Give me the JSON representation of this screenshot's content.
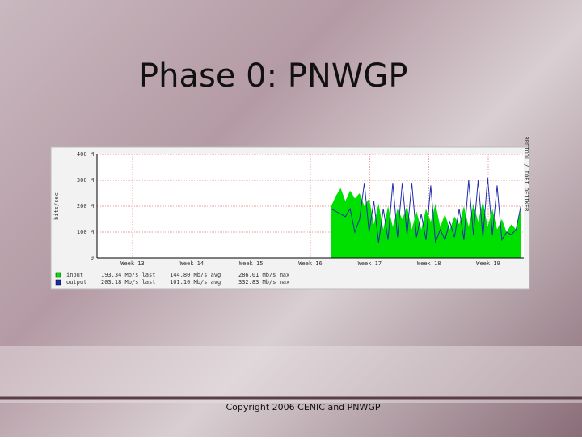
{
  "slide_title": "Phase 0: PNWGP",
  "footer": "Copyright 2006 CENIC and PNWGP",
  "chart_data": {
    "type": "area-line",
    "ylabel": "bits/sec",
    "watermark": "RRDTOOL / TOBI OETIKER",
    "xlim": [
      12.4,
      19.6
    ],
    "xticks": [
      {
        "value": 13,
        "label": "Week 13"
      },
      {
        "value": 14,
        "label": "Week 14"
      },
      {
        "value": 15,
        "label": "Week 15"
      },
      {
        "value": 16,
        "label": "Week 16"
      },
      {
        "value": 17,
        "label": "Week 17"
      },
      {
        "value": 18,
        "label": "Week 18"
      },
      {
        "value": 19,
        "label": "Week 19"
      }
    ],
    "ylim": [
      0,
      400000000
    ],
    "yticks": [
      {
        "value": 0,
        "label": "0"
      },
      {
        "value": 100000000,
        "label": "100 M"
      },
      {
        "value": 200000000,
        "label": "200 M"
      },
      {
        "value": 300000000,
        "label": "300 M"
      },
      {
        "value": 400000000,
        "label": "400 M"
      }
    ],
    "grid": true,
    "x": [
      16.35,
      16.43,
      16.51,
      16.59,
      16.67,
      16.75,
      16.83,
      16.91,
      16.99,
      17.07,
      17.15,
      17.23,
      17.31,
      17.39,
      17.47,
      17.55,
      17.63,
      17.71,
      17.79,
      17.87,
      17.95,
      18.03,
      18.11,
      18.19,
      18.27,
      18.35,
      18.43,
      18.51,
      18.59,
      18.67,
      18.75,
      18.83,
      18.91,
      18.99,
      19.07,
      19.15,
      19.23,
      19.31,
      19.39,
      19.47,
      19.55
    ],
    "series": [
      {
        "name": "input",
        "color": "#00e000",
        "draw": "area",
        "stats": [
          "193.34 Mb/s last",
          "144.80 Mb/s avg",
          "286.01 Mb/s max"
        ],
        "values": [
          200000000,
          240000000,
          270000000,
          220000000,
          260000000,
          230000000,
          250000000,
          200000000,
          230000000,
          130000000,
          210000000,
          110000000,
          200000000,
          120000000,
          190000000,
          150000000,
          200000000,
          110000000,
          180000000,
          110000000,
          190000000,
          140000000,
          210000000,
          120000000,
          170000000,
          110000000,
          160000000,
          130000000,
          200000000,
          120000000,
          210000000,
          140000000,
          220000000,
          120000000,
          190000000,
          110000000,
          150000000,
          100000000,
          130000000,
          110000000,
          190000000
        ]
      },
      {
        "name": "output",
        "color": "#1e2cb0",
        "draw": "line",
        "stats": [
          "203.18 Mb/s last",
          "101.10 Mb/s avg",
          "332.83 Mb/s max"
        ],
        "values": [
          190000000,
          180000000,
          170000000,
          160000000,
          190000000,
          100000000,
          150000000,
          290000000,
          100000000,
          220000000,
          60000000,
          190000000,
          70000000,
          290000000,
          80000000,
          290000000,
          90000000,
          290000000,
          80000000,
          170000000,
          70000000,
          280000000,
          60000000,
          110000000,
          70000000,
          140000000,
          80000000,
          190000000,
          70000000,
          300000000,
          90000000,
          300000000,
          80000000,
          310000000,
          90000000,
          280000000,
          70000000,
          100000000,
          90000000,
          110000000,
          200000000
        ]
      }
    ]
  }
}
